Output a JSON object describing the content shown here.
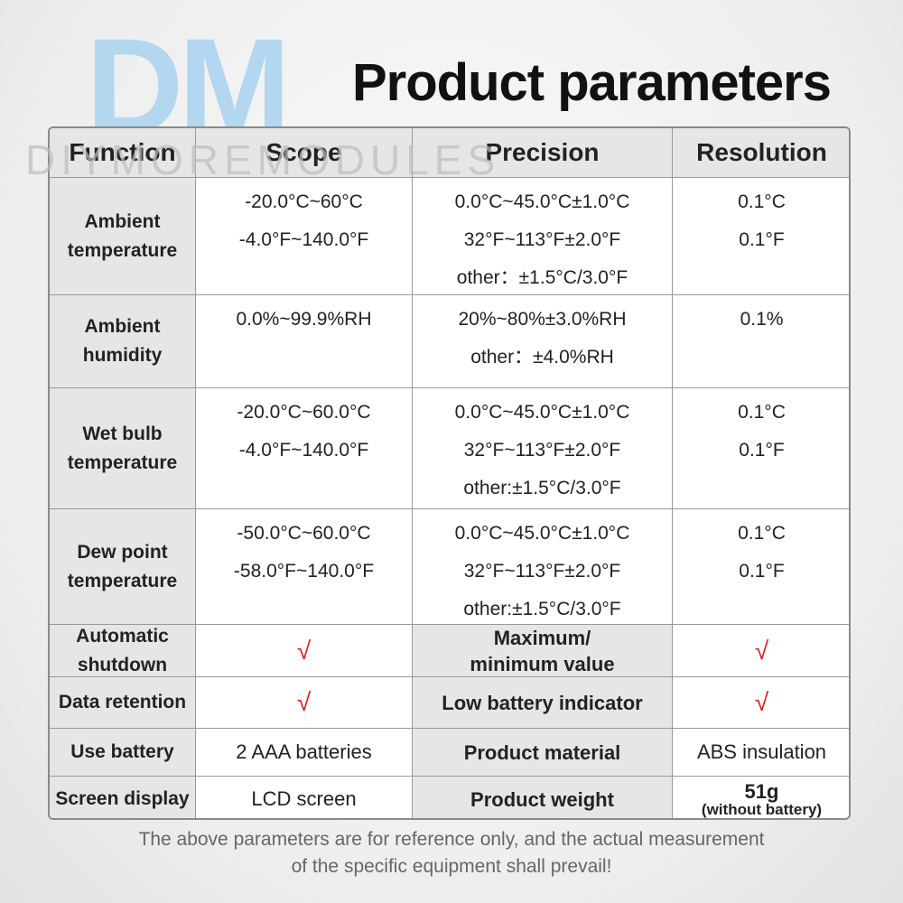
{
  "logo": "DM",
  "watermark": "DIYMOREMODULES",
  "title": "Product parameters",
  "table": {
    "header": [
      "Function",
      "Scope",
      "Precision",
      "Resolution"
    ],
    "rows": [
      [
        [
          "Ambient",
          "temperature"
        ],
        [
          "-20.0°C~60°C",
          "-4.0°F~140.0°F"
        ],
        [
          "0.0°C~45.0°C±1.0°C",
          "32°F~113°F±2.0°F",
          "other：±1.5°C/3.0°F"
        ],
        [
          "0.1°C",
          "0.1°F"
        ]
      ],
      [
        [
          "Ambient",
          "humidity"
        ],
        [
          "0.0%~99.9%RH"
        ],
        [
          "20%~80%±3.0%RH",
          "other：±4.0%RH"
        ],
        [
          "0.1%"
        ]
      ],
      [
        [
          "Wet bulb",
          "temperature"
        ],
        [
          "-20.0°C~60.0°C",
          "-4.0°F~140.0°F"
        ],
        [
          "0.0°C~45.0°C±1.0°C",
          "32°F~113°F±2.0°F",
          "other:±1.5°C/3.0°F"
        ],
        [
          "0.1°C",
          "0.1°F"
        ]
      ],
      [
        [
          "Dew point",
          "temperature"
        ],
        [
          "-50.0°C~60.0°C",
          "-58.0°F~140.0°F"
        ],
        [
          "0.0°C~45.0°C±1.0°C",
          "32°F~113°F±2.0°F",
          "other:±1.5°C/3.0°F"
        ],
        [
          "0.1°C",
          "0.1°F"
        ]
      ],
      [
        [
          "Automatic",
          "shutdown"
        ],
        [
          "√"
        ],
        [
          "Maximum/",
          "minimum value"
        ],
        [
          "√"
        ]
      ],
      [
        [
          "Data retention"
        ],
        [
          "√"
        ],
        [
          "Low battery indicator"
        ],
        [
          "√"
        ]
      ],
      [
        [
          "Use battery"
        ],
        [
          "2 AAA batteries"
        ],
        [
          "Product material"
        ],
        [
          "ABS insulation"
        ]
      ],
      [
        [
          "Screen display"
        ],
        [
          "LCD screen"
        ],
        [
          "Product weight"
        ],
        [
          "51g",
          "(without battery)"
        ]
      ]
    ]
  },
  "footer": [
    "The above parameters are for reference only, and the actual measurement",
    "of the specific equipment shall prevail!"
  ]
}
